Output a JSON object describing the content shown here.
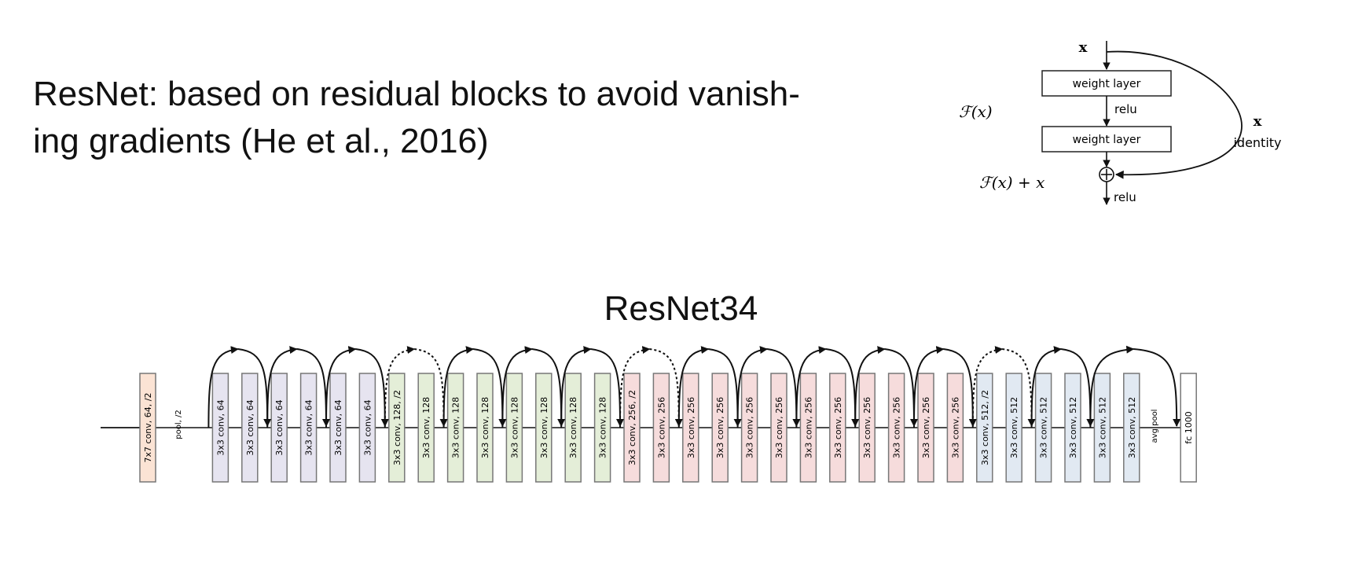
{
  "headline_lines": [
    "ResNet: based on residual blocks to avoid vanish-",
    "ing gradients (He et al., 2016)"
  ],
  "residual_block": {
    "input_label": "x",
    "layer1": "weight layer",
    "activation1": "relu",
    "layer2": "weight layer",
    "function_label": "ℱ(x)",
    "sum_label": "ℱ(x) + x",
    "activation2": "relu",
    "shortcut_label": "x",
    "shortcut_name": "identity"
  },
  "network": {
    "title": "ResNet34",
    "layers": [
      {
        "label": "7x7 conv, 64, /2",
        "stage": "stem"
      },
      {
        "label": "3x3 conv, 64",
        "stage": "s64"
      },
      {
        "label": "3x3 conv, 64",
        "stage": "s64"
      },
      {
        "label": "3x3 conv, 64",
        "stage": "s64"
      },
      {
        "label": "3x3 conv, 64",
        "stage": "s64"
      },
      {
        "label": "3x3 conv, 64",
        "stage": "s64"
      },
      {
        "label": "3x3 conv, 64",
        "stage": "s64"
      },
      {
        "label": "3x3 conv, 128, /2",
        "stage": "s128"
      },
      {
        "label": "3x3 conv, 128",
        "stage": "s128"
      },
      {
        "label": "3x3 conv, 128",
        "stage": "s128"
      },
      {
        "label": "3x3 conv, 128",
        "stage": "s128"
      },
      {
        "label": "3x3 conv, 128",
        "stage": "s128"
      },
      {
        "label": "3x3 conv, 128",
        "stage": "s128"
      },
      {
        "label": "3x3 conv, 128",
        "stage": "s128"
      },
      {
        "label": "3x3 conv, 128",
        "stage": "s128"
      },
      {
        "label": "3x3 conv, 256, /2",
        "stage": "s256"
      },
      {
        "label": "3x3 conv, 256",
        "stage": "s256"
      },
      {
        "label": "3x3 conv, 256",
        "stage": "s256"
      },
      {
        "label": "3x3 conv, 256",
        "stage": "s256"
      },
      {
        "label": "3x3 conv, 256",
        "stage": "s256"
      },
      {
        "label": "3x3 conv, 256",
        "stage": "s256"
      },
      {
        "label": "3x3 conv, 256",
        "stage": "s256"
      },
      {
        "label": "3x3 conv, 256",
        "stage": "s256"
      },
      {
        "label": "3x3 conv, 256",
        "stage": "s256"
      },
      {
        "label": "3x3 conv, 256",
        "stage": "s256"
      },
      {
        "label": "3x3 conv, 256",
        "stage": "s256"
      },
      {
        "label": "3x3 conv, 256",
        "stage": "s256"
      },
      {
        "label": "3x3 conv, 512, /2",
        "stage": "s512"
      },
      {
        "label": "3x3 conv, 512",
        "stage": "s512"
      },
      {
        "label": "3x3 conv, 512",
        "stage": "s512"
      },
      {
        "label": "3x3 conv, 512",
        "stage": "s512"
      },
      {
        "label": "3x3 conv, 512",
        "stage": "s512"
      },
      {
        "label": "3x3 conv, 512",
        "stage": "s512"
      },
      {
        "label": "fc 1000",
        "stage": "fc"
      }
    ],
    "pool_labels": {
      "after_stem": "pool, /2",
      "before_fc": "avg pool"
    },
    "skip_connections": [
      {
        "from": 1,
        "to": 3,
        "style": "solid"
      },
      {
        "from": 3,
        "to": 5,
        "style": "solid"
      },
      {
        "from": 5,
        "to": 7,
        "style": "solid"
      },
      {
        "from": 7,
        "to": 9,
        "style": "dashed"
      },
      {
        "from": 9,
        "to": 11,
        "style": "solid"
      },
      {
        "from": 11,
        "to": 13,
        "style": "solid"
      },
      {
        "from": 13,
        "to": 15,
        "style": "solid"
      },
      {
        "from": 15,
        "to": 17,
        "style": "dashed"
      },
      {
        "from": 17,
        "to": 19,
        "style": "solid"
      },
      {
        "from": 19,
        "to": 21,
        "style": "solid"
      },
      {
        "from": 21,
        "to": 23,
        "style": "solid"
      },
      {
        "from": 23,
        "to": 25,
        "style": "solid"
      },
      {
        "from": 25,
        "to": 27,
        "style": "solid"
      },
      {
        "from": 27,
        "to": 29,
        "style": "dashed"
      },
      {
        "from": 29,
        "to": 31,
        "style": "solid"
      },
      {
        "from": 31,
        "to": 33,
        "style": "solid"
      }
    ],
    "stage_colors": {
      "stem": "#fbe3d4",
      "s64": "#e6e4f0",
      "s128": "#e4eed8",
      "s256": "#f6dcdc",
      "s512": "#e1e9f2",
      "fc": "#ffffff"
    }
  }
}
